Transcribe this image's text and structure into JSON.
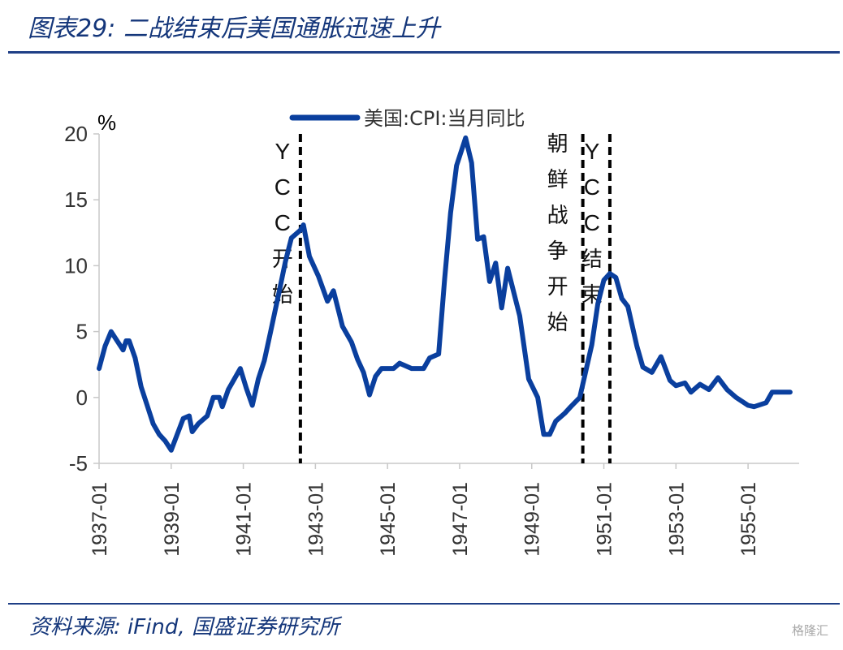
{
  "header": {
    "title": "图表29:  二战结束后美国通胀迅速上升"
  },
  "footer": {
    "source": "资料来源:  iFind,  国盛证券研究所",
    "watermark": "格隆汇"
  },
  "chart_data": {
    "type": "line",
    "unit_label": "%",
    "ylim": [
      -5,
      20
    ],
    "y_ticks": [
      "20",
      "15",
      "10",
      "5",
      "0",
      "-5"
    ],
    "x_range": [
      "1937-01",
      "1956-06"
    ],
    "x_ticks": [
      "1937-01",
      "1939-01",
      "1941-01",
      "1943-01",
      "1945-01",
      "1947-01",
      "1949-01",
      "1951-01",
      "1953-01",
      "1955-01"
    ],
    "series": [
      {
        "name": "美国:CPI:当月同比",
        "color": "#0a3f9e",
        "points": [
          [
            "1937-01",
            2.2
          ],
          [
            "1937-03",
            3.9
          ],
          [
            "1937-05",
            5.0
          ],
          [
            "1937-07",
            4.3
          ],
          [
            "1937-09",
            3.6
          ],
          [
            "1937-10",
            4.3
          ],
          [
            "1937-11",
            4.3
          ],
          [
            "1938-01",
            3.0
          ],
          [
            "1938-03",
            0.8
          ],
          [
            "1938-05",
            -0.6
          ],
          [
            "1938-07",
            -2.0
          ],
          [
            "1938-09",
            -2.8
          ],
          [
            "1938-11",
            -3.3
          ],
          [
            "1939-01",
            -4.0
          ],
          [
            "1939-03",
            -2.8
          ],
          [
            "1939-05",
            -1.6
          ],
          [
            "1939-07",
            -1.4
          ],
          [
            "1939-08",
            -2.6
          ],
          [
            "1939-10",
            -2.0
          ],
          [
            "1940-01",
            -1.4
          ],
          [
            "1940-03",
            0.0
          ],
          [
            "1940-05",
            0.0
          ],
          [
            "1940-06",
            -0.7
          ],
          [
            "1940-08",
            0.6
          ],
          [
            "1940-10",
            1.4
          ],
          [
            "1940-12",
            2.2
          ],
          [
            "1941-02",
            0.7
          ],
          [
            "1941-04",
            -0.6
          ],
          [
            "1941-06",
            1.4
          ],
          [
            "1941-08",
            2.8
          ],
          [
            "1941-10",
            4.9
          ],
          [
            "1942-01",
            8.1
          ],
          [
            "1942-03",
            10.3
          ],
          [
            "1942-05",
            12.1
          ],
          [
            "1942-08",
            12.7
          ],
          [
            "1942-09",
            13.1
          ],
          [
            "1942-11",
            10.7
          ],
          [
            "1943-02",
            9.2
          ],
          [
            "1943-05",
            7.3
          ],
          [
            "1943-07",
            8.1
          ],
          [
            "1943-10",
            5.4
          ],
          [
            "1944-01",
            4.2
          ],
          [
            "1944-03",
            2.9
          ],
          [
            "1944-05",
            1.9
          ],
          [
            "1944-07",
            0.2
          ],
          [
            "1944-09",
            1.6
          ],
          [
            "1944-11",
            2.2
          ],
          [
            "1945-03",
            2.2
          ],
          [
            "1945-05",
            2.6
          ],
          [
            "1945-09",
            2.2
          ],
          [
            "1946-01",
            2.2
          ],
          [
            "1946-03",
            3.0
          ],
          [
            "1946-06",
            3.3
          ],
          [
            "1946-08",
            9.0
          ],
          [
            "1946-10",
            14.0
          ],
          [
            "1946-12",
            17.6
          ],
          [
            "1947-03",
            19.7
          ],
          [
            "1947-05",
            17.8
          ],
          [
            "1947-07",
            12.0
          ],
          [
            "1947-09",
            12.2
          ],
          [
            "1947-11",
            8.8
          ],
          [
            "1948-01",
            10.2
          ],
          [
            "1948-03",
            6.8
          ],
          [
            "1948-05",
            9.8
          ],
          [
            "1948-07",
            8.0
          ],
          [
            "1948-09",
            6.2
          ],
          [
            "1948-12",
            1.4
          ],
          [
            "1949-03",
            0.0
          ],
          [
            "1949-05",
            -2.8
          ],
          [
            "1949-07",
            -2.8
          ],
          [
            "1949-09",
            -1.8
          ],
          [
            "1949-12",
            -1.2
          ],
          [
            "1950-02",
            -0.7
          ],
          [
            "1950-05",
            0.0
          ],
          [
            "1950-07",
            2.0
          ],
          [
            "1950-09",
            4.0
          ],
          [
            "1950-11",
            7.1
          ],
          [
            "1951-01",
            8.9
          ],
          [
            "1951-03",
            9.4
          ],
          [
            "1951-05",
            9.1
          ],
          [
            "1951-07",
            7.5
          ],
          [
            "1951-09",
            6.9
          ],
          [
            "1951-12",
            3.9
          ],
          [
            "1952-02",
            2.3
          ],
          [
            "1952-05",
            1.9
          ],
          [
            "1952-08",
            3.1
          ],
          [
            "1952-11",
            1.3
          ],
          [
            "1953-01",
            0.9
          ],
          [
            "1953-04",
            1.1
          ],
          [
            "1953-06",
            0.4
          ],
          [
            "1953-09",
            1.0
          ],
          [
            "1953-12",
            0.6
          ],
          [
            "1954-03",
            1.5
          ],
          [
            "1954-06",
            0.6
          ],
          [
            "1954-09",
            0.0
          ],
          [
            "1955-01",
            -0.6
          ],
          [
            "1955-03",
            -0.7
          ],
          [
            "1955-07",
            -0.4
          ],
          [
            "1955-09",
            0.4
          ],
          [
            "1956-03",
            0.4
          ]
        ]
      }
    ],
    "annotations": [
      {
        "date": "1942-08",
        "label": [
          "Y",
          "C",
          "C",
          "开",
          "始"
        ]
      },
      {
        "date": "1950-06",
        "label": [
          "朝",
          "鲜",
          "战",
          "争",
          "开",
          "始"
        ]
      },
      {
        "date": "1951-03",
        "label": [
          "Y",
          "C",
          "C",
          "结",
          "束"
        ]
      }
    ]
  }
}
